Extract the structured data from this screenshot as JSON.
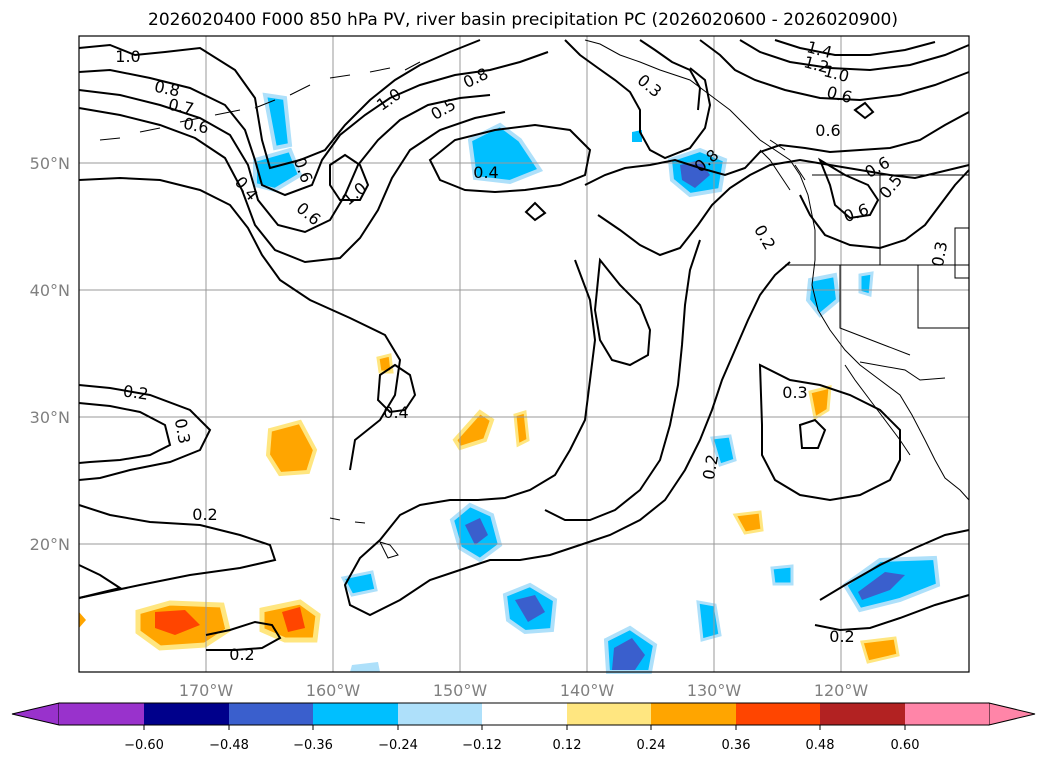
{
  "title": "2026020400 F000 850 hPa PV, river basin precipitation PC (2026020600 - 2026020900)",
  "lat_labels": [
    "50°N",
    "40°N",
    "30°N",
    "20°N"
  ],
  "lon_labels": [
    "170°W",
    "160°W",
    "150°W",
    "140°W",
    "130°W",
    "120°W"
  ],
  "colorbar": {
    "ticks": [
      "−0.60",
      "−0.48",
      "−0.36",
      "−0.24",
      "−0.12",
      "0.12",
      "0.24",
      "0.36",
      "0.48",
      "0.60"
    ],
    "colors": [
      "#9932CC",
      "#00008B",
      "#3A5FCD",
      "#00BFFF",
      "#AEE0FA",
      "#FFFFFF",
      "#FFE680",
      "#FFA500",
      "#FF4500",
      "#B22222",
      "#FF85A8"
    ]
  },
  "contour_labels": [
    "1.0",
    "0.8",
    "0.7",
    "0.6",
    "0.4",
    "0.6",
    "1.0",
    "0.6",
    "1.0",
    "0.8",
    "0.5",
    "0.4",
    "0.3",
    "0.8",
    "1.4",
    "1.2",
    "1.0",
    "0.6",
    "0.6",
    "0.6",
    "0.5",
    "0.6",
    "0.2",
    "0.3",
    "0.2",
    "0.3",
    "0.4",
    "0.3",
    "0.2",
    "0.2",
    "0.2",
    "0.2"
  ],
  "map": {
    "fill_colors": {
      "light_blue": "#AEE0FA",
      "blue": "#00BFFF",
      "dark_blue": "#3A5FCD",
      "light_orange": "#FFE680",
      "orange": "#FFA500",
      "red": "#FF4500"
    }
  }
}
